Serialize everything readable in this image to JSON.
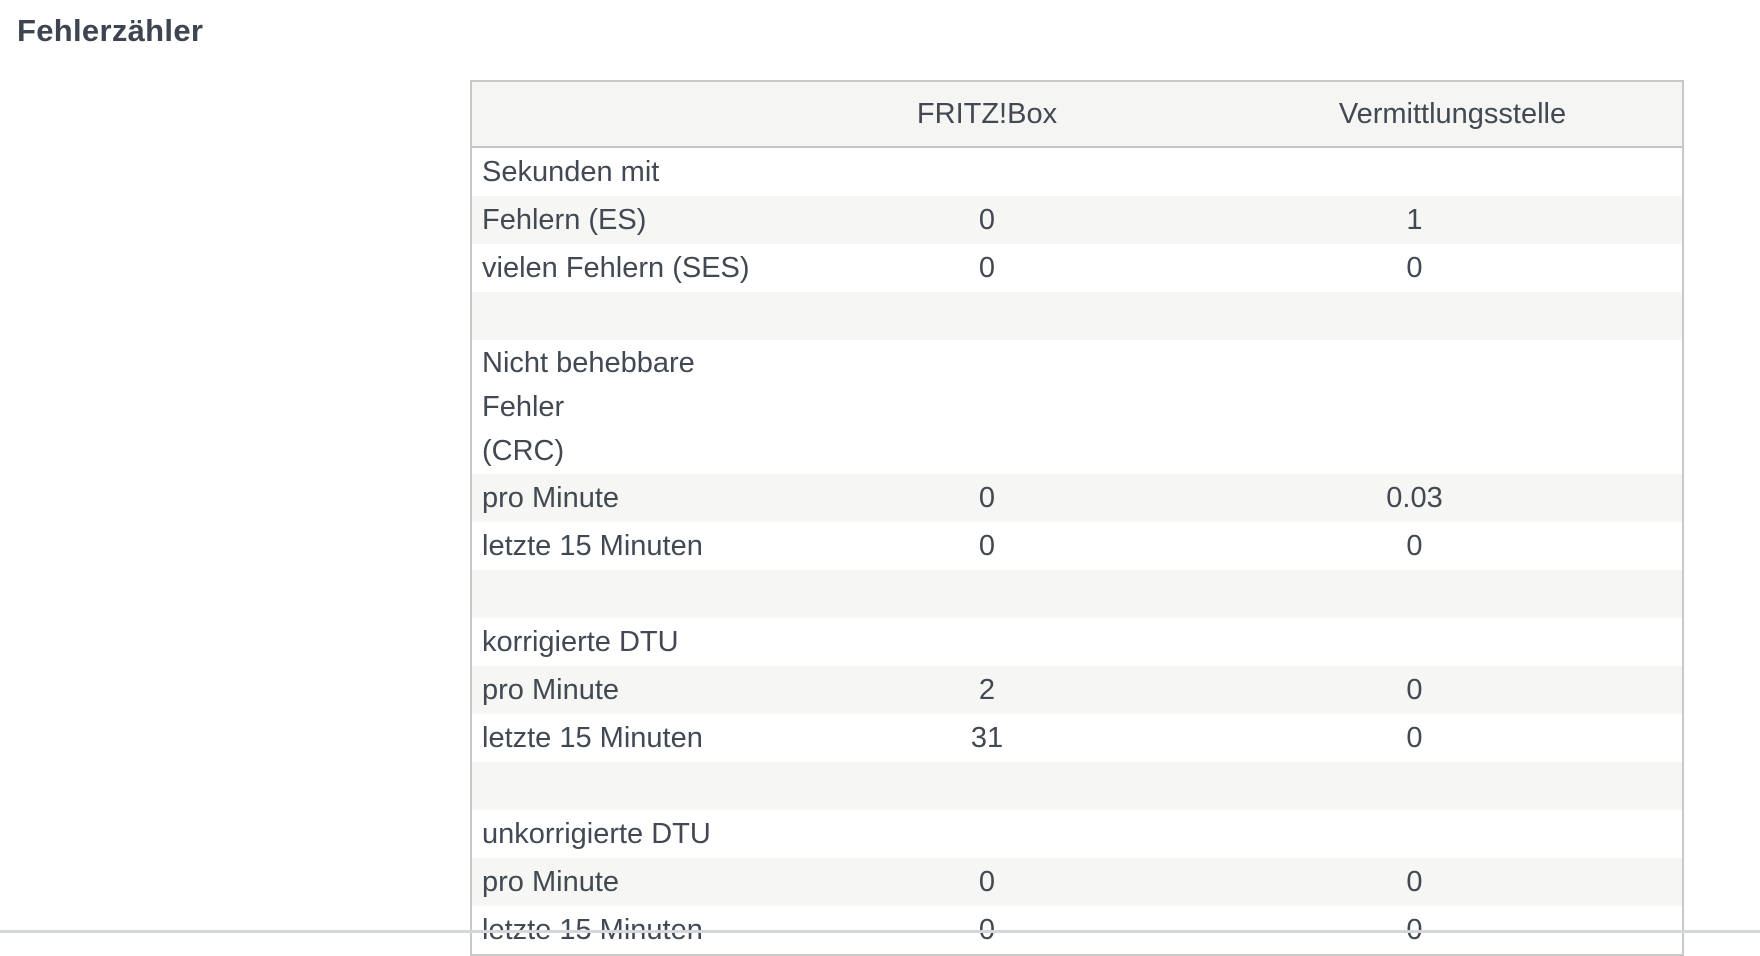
{
  "page": {
    "title": "Fehlerzähler"
  },
  "table": {
    "columns": [
      "",
      "FRITZ!Box",
      "Vermittlungsstelle"
    ],
    "rows": [
      {
        "label": "Sekunden mit",
        "fritzbox": "",
        "vermittlungsstelle": ""
      },
      {
        "label": "Fehlern (ES)",
        "fritzbox": "0",
        "vermittlungsstelle": "1"
      },
      {
        "label": "vielen Fehlern (SES)",
        "fritzbox": "0",
        "vermittlungsstelle": "0"
      },
      {
        "label": "",
        "fritzbox": "",
        "vermittlungsstelle": ""
      },
      {
        "label": "Nicht behebbare Fehler\n(CRC)",
        "fritzbox": "",
        "vermittlungsstelle": ""
      },
      {
        "label": "pro Minute",
        "fritzbox": "0",
        "vermittlungsstelle": "0.03"
      },
      {
        "label": "letzte 15 Minuten",
        "fritzbox": "0",
        "vermittlungsstelle": "0"
      },
      {
        "label": "",
        "fritzbox": "",
        "vermittlungsstelle": ""
      },
      {
        "label": "korrigierte DTU",
        "fritzbox": "",
        "vermittlungsstelle": ""
      },
      {
        "label": "pro Minute",
        "fritzbox": "2",
        "vermittlungsstelle": "0"
      },
      {
        "label": "letzte 15 Minuten",
        "fritzbox": "31",
        "vermittlungsstelle": "0"
      },
      {
        "label": "",
        "fritzbox": "",
        "vermittlungsstelle": ""
      },
      {
        "label": "unkorrigierte DTU",
        "fritzbox": "",
        "vermittlungsstelle": ""
      },
      {
        "label": "pro Minute",
        "fritzbox": "0",
        "vermittlungsstelle": "0"
      },
      {
        "label": "letzte 15 Minuten",
        "fritzbox": "0",
        "vermittlungsstelle": "0"
      }
    ]
  },
  "colors": {
    "text": "#424952",
    "title_text": "#3e4550",
    "table_border": "#c8c8c6",
    "header_bg": "#f5f5f3",
    "stripe_bg": "#f6f6f4",
    "bottom_divider": "#d4d7d9"
  }
}
